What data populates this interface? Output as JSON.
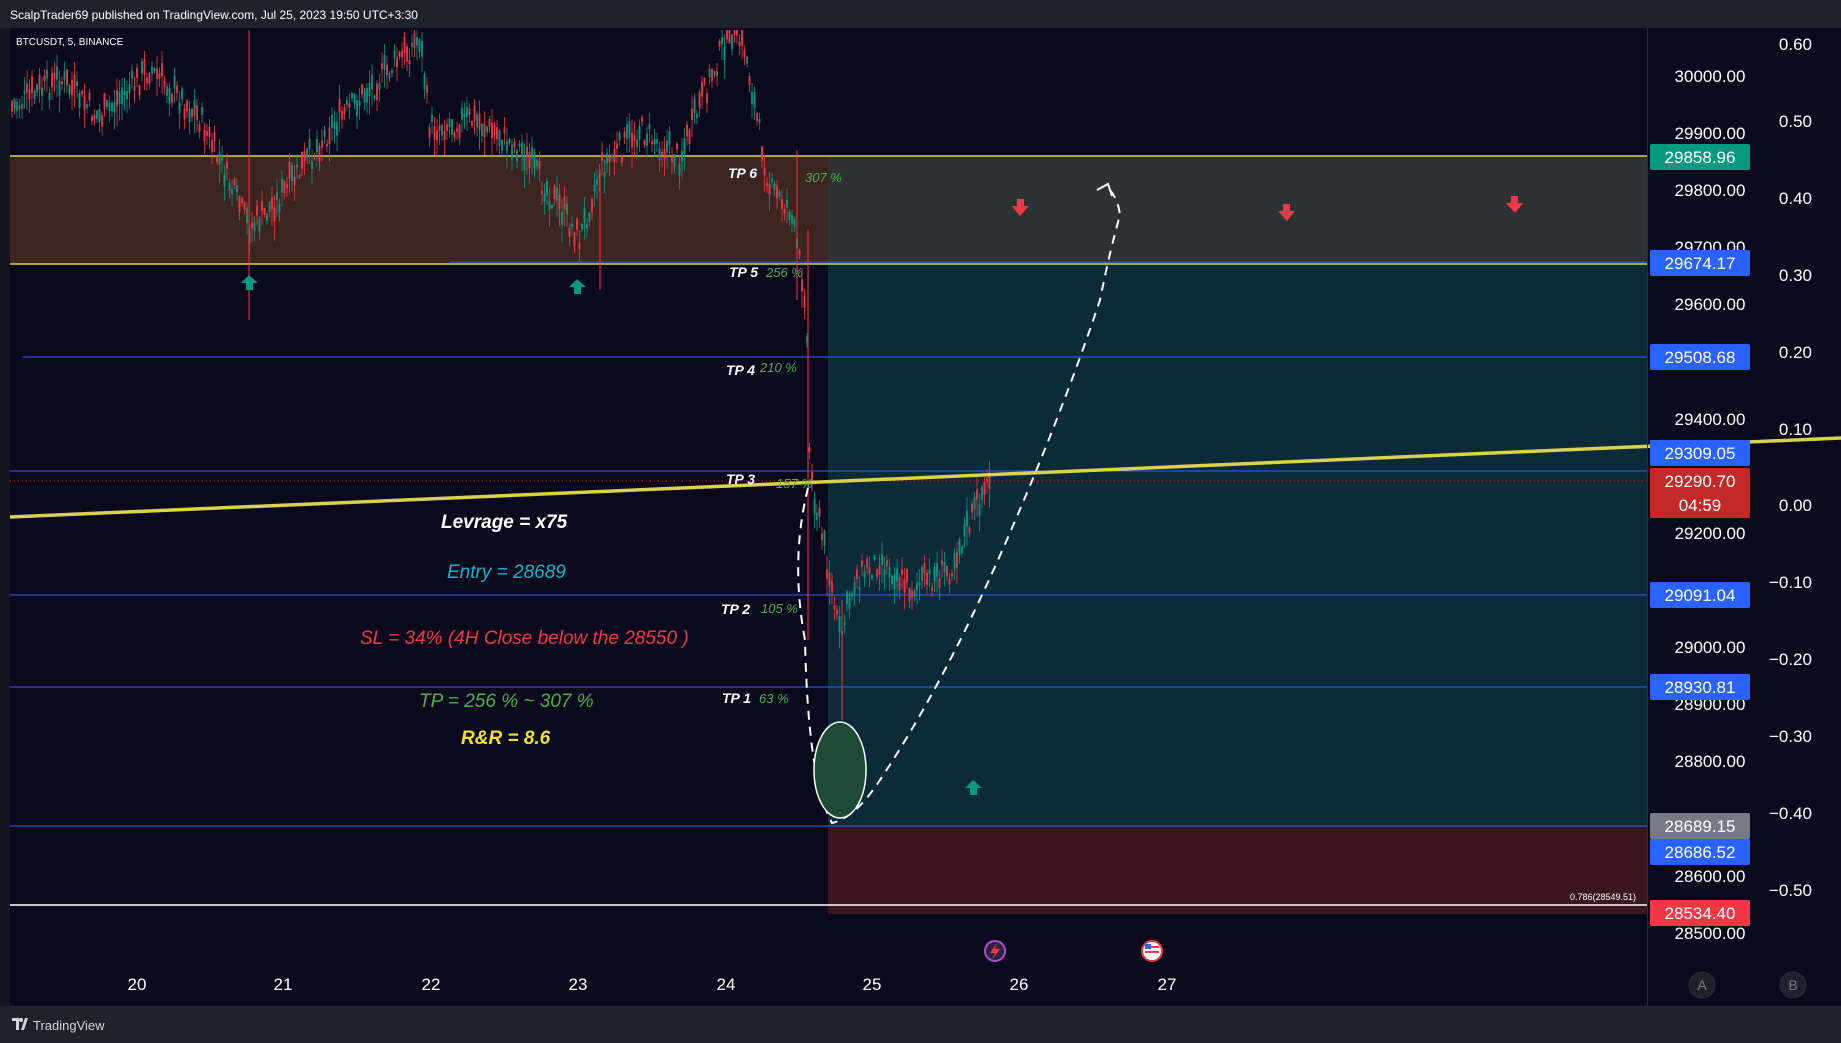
{
  "header": {
    "publisher_line": "ScalpTrader69 published on TradingView.com, Jul 25, 2023 19:50 UTC+3:30"
  },
  "symbol_label": "BTCUSDT, 5, BINANCE",
  "price_axis": {
    "ticks": [
      "30000.00",
      "29900.00",
      "29800.00",
      "29700.00",
      "29600.00",
      "29400.00",
      "29200.00",
      "29000.00",
      "28900.00",
      "28800.00",
      "28600.00",
      "28500.00"
    ],
    "labels": [
      {
        "text": "29858.96",
        "color": "#089981"
      },
      {
        "text": "29674.17",
        "color": "#2962ff"
      },
      {
        "text": "29508.68",
        "color": "#2962ff"
      },
      {
        "text": "29309.05",
        "color": "#2962ff"
      },
      {
        "text": "29290.70",
        "color": "#c62828"
      },
      {
        "text": "04:59",
        "color": "#c62828"
      },
      {
        "text": "29091.04",
        "color": "#2962ff"
      },
      {
        "text": "28930.81",
        "color": "#2962ff"
      },
      {
        "text": "28689.15",
        "color": "#787b86"
      },
      {
        "text": "28686.52",
        "color": "#2962ff"
      },
      {
        "text": "28534.40",
        "color": "#f23645"
      }
    ]
  },
  "pct_axis": {
    "ticks": [
      "0.60",
      "0.50",
      "0.40",
      "0.30",
      "0.20",
      "0.10",
      "0.00",
      "−0.10",
      "−0.20",
      "−0.30",
      "−0.40",
      "−0.50"
    ]
  },
  "time_axis": {
    "ticks": [
      "20",
      "21",
      "22",
      "23",
      "24",
      "25",
      "26",
      "27"
    ]
  },
  "tp_labels": [
    {
      "name": "TP 6",
      "pct": "307 %"
    },
    {
      "name": "TP 5",
      "pct": "256 %"
    },
    {
      "name": "TP 4",
      "pct": "210 %"
    },
    {
      "name": "TP 3",
      "pct": "157 %"
    },
    {
      "name": "TP 2",
      "pct": "105 %"
    },
    {
      "name": "TP 1",
      "pct": "63 %"
    }
  ],
  "notes": {
    "leverage": "Levrage = x75",
    "entry": "Entry = 28689",
    "stop_loss": "SL = 34%  (4H Close below the 28550 )",
    "take_profit": "TP =  256 % ~ 307 %",
    "risk_reward": "R&R  =  8.6"
  },
  "fib_label": "0.786(28549.51)",
  "scale_buttons": {
    "a": "A",
    "b": "B"
  },
  "footer": {
    "brand": "TradingView"
  },
  "colors": {
    "background": "#0b0a1c",
    "resistance_zone": "#3c2420",
    "profit_zone": "#0c2a37",
    "stop_zone": "#3a1620",
    "trendline": "#d9d24a",
    "level_line": "#2962ff",
    "up_arrow": "#089981",
    "down_arrow": "#f23645"
  },
  "icons": [
    "lightning-event-icon",
    "us-flag-event-icon",
    "up-arrow-icon",
    "down-arrow-icon",
    "tradingview-logo-icon"
  ]
}
